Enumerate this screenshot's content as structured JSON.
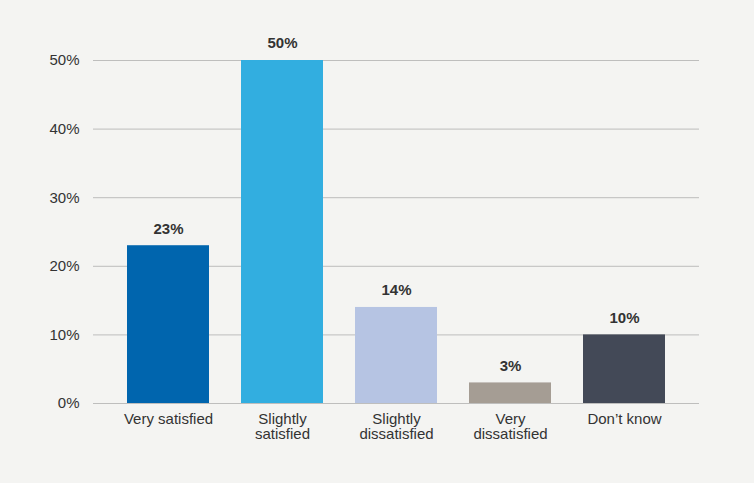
{
  "chart_data": {
    "type": "bar",
    "categories": [
      "Very satisfied",
      "Slightly satisfied",
      "Slightly dissatisfied",
      "Very dissatisfied",
      "Don’t know"
    ],
    "values": [
      23,
      50,
      14,
      3,
      10
    ],
    "value_labels": [
      "23%",
      "50%",
      "14%",
      "3%",
      "10%"
    ],
    "colors": [
      "#0065ae",
      "#32aee0",
      "#b6c4e3",
      "#a59d94",
      "#434957"
    ],
    "ylim": [
      0,
      50
    ],
    "yticks": [
      {
        "value": 0,
        "label": "0%"
      },
      {
        "value": 10,
        "label": "10%"
      },
      {
        "value": 20,
        "label": "20%"
      },
      {
        "value": 30,
        "label": "30%"
      },
      {
        "value": 40,
        "label": "40%"
      },
      {
        "value": 50,
        "label": "50%"
      }
    ],
    "grid": true,
    "data_labels": true
  }
}
